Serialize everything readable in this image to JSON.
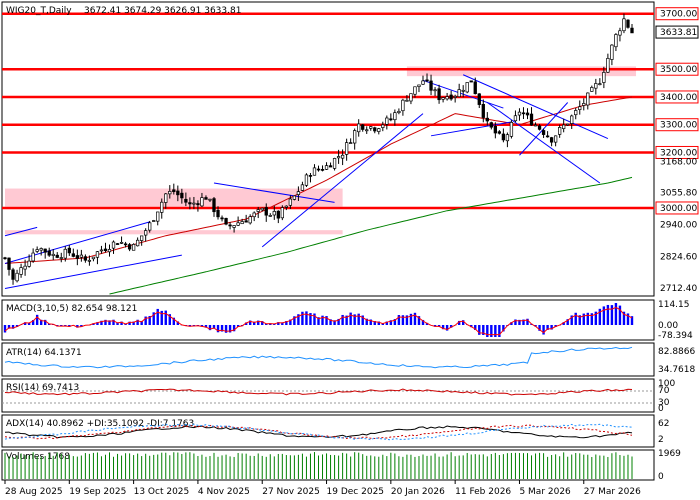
{
  "header": {
    "symbol": "WIG20_T,Daily",
    "ohlc": "3672.41 3674.29 3626.91 3633.81"
  },
  "colors": {
    "up": "#000000",
    "down": "#000000",
    "level": "#ff0000",
    "zone": "#ffc0cb",
    "ma_fast": "#cc0000",
    "ma_slow": "#008000",
    "trend": "#0000ff",
    "macd_hist": "#0000ff",
    "macd_signal": "#ff0000",
    "atr": "#1e90ff",
    "rsi": "#cc0000",
    "adx": "#000000",
    "volume": "#008000"
  },
  "chart_data": {
    "type": "candlestick",
    "ylim": [
      2690,
      3735
    ],
    "yticks": [
      "3700.00",
      "3633.81",
      "3500.00",
      "3400.00",
      "3300.00",
      "3200.00",
      "3168.00",
      "3055.80",
      "3000.00",
      "2940.00",
      "2824.60",
      "2712.40"
    ],
    "highlighted_ticks": [
      "3700.00",
      "3633.81",
      "3500.00",
      "3400.00",
      "3300.00",
      "3200.00",
      "3000.00"
    ],
    "x_labels": [
      "28 Aug 2025",
      "19 Sep 2025",
      "13 Oct 2025",
      "4 Nov 2025",
      "27 Nov 2025",
      "19 Dec 2025",
      "20 Jan 2026",
      "11 Feb 2026",
      "5 Mar 2026",
      "27 Mar 2026"
    ],
    "x_label_bars": [
      0,
      16,
      32,
      48,
      64,
      80,
      96,
      112,
      128,
      144
    ],
    "bar_count": 157,
    "levels": [
      3700,
      3500,
      3400,
      3300,
      3200,
      3000
    ],
    "zones": [
      {
        "bar_start": 100,
        "bar_end": 157,
        "y_low": 3475,
        "y_high": 3510
      },
      {
        "bar_start": 0,
        "bar_end": 84,
        "y_low": 3005,
        "y_high": 3070
      },
      {
        "bar_start": 0,
        "bar_end": 84,
        "y_low": 2905,
        "y_high": 2920
      }
    ],
    "keypoints": [
      [
        0,
        2820
      ],
      [
        2,
        2740
      ],
      [
        5,
        2800
      ],
      [
        8,
        2860
      ],
      [
        12,
        2830
      ],
      [
        16,
        2840
      ],
      [
        20,
        2810
      ],
      [
        24,
        2850
      ],
      [
        28,
        2880
      ],
      [
        32,
        2860
      ],
      [
        36,
        2940
      ],
      [
        40,
        3050
      ],
      [
        42,
        3060
      ],
      [
        46,
        3010
      ],
      [
        50,
        3040
      ],
      [
        55,
        2930
      ],
      [
        60,
        2960
      ],
      [
        64,
        2990
      ],
      [
        68,
        2970
      ],
      [
        72,
        3040
      ],
      [
        76,
        3130
      ],
      [
        80,
        3150
      ],
      [
        84,
        3200
      ],
      [
        88,
        3300
      ],
      [
        92,
        3290
      ],
      [
        96,
        3320
      ],
      [
        100,
        3400
      ],
      [
        104,
        3460
      ],
      [
        108,
        3400
      ],
      [
        112,
        3410
      ],
      [
        116,
        3460
      ],
      [
        120,
        3300
      ],
      [
        124,
        3240
      ],
      [
        128,
        3350
      ],
      [
        132,
        3300
      ],
      [
        136,
        3250
      ],
      [
        140,
        3310
      ],
      [
        144,
        3380
      ],
      [
        148,
        3460
      ],
      [
        152,
        3620
      ],
      [
        154,
        3680
      ],
      [
        156,
        3634
      ]
    ],
    "ma_fast": [
      [
        0,
        2800
      ],
      [
        20,
        2820
      ],
      [
        40,
        2900
      ],
      [
        60,
        2960
      ],
      [
        80,
        3100
      ],
      [
        96,
        3230
      ],
      [
        112,
        3340
      ],
      [
        128,
        3300
      ],
      [
        144,
        3370
      ],
      [
        156,
        3400
      ]
    ],
    "ma_slow": [
      [
        26,
        2690
      ],
      [
        50,
        2770
      ],
      [
        70,
        2840
      ],
      [
        90,
        2920
      ],
      [
        110,
        2990
      ],
      [
        130,
        3040
      ],
      [
        150,
        3090
      ],
      [
        156,
        3110
      ]
    ],
    "trendlines": [
      [
        [
          0,
          2800
        ],
        [
          36,
          2950
        ]
      ],
      [
        [
          0,
          2710
        ],
        [
          44,
          2830
        ]
      ],
      [
        [
          0,
          2900
        ],
        [
          8,
          2930
        ]
      ],
      [
        [
          52,
          3090
        ],
        [
          82,
          3020
        ]
      ],
      [
        [
          64,
          2860
        ],
        [
          104,
          3340
        ]
      ],
      [
        [
          104,
          3460
        ],
        [
          124,
          3360
        ]
      ],
      [
        [
          114,
          3480
        ],
        [
          150,
          3250
        ]
      ],
      [
        [
          106,
          3260
        ],
        [
          126,
          3310
        ]
      ],
      [
        [
          120,
          3380
        ],
        [
          148,
          3090
        ]
      ],
      [
        [
          128,
          3190
        ],
        [
          140,
          3380
        ]
      ]
    ],
    "indicators": {
      "macd": {
        "label": "MACD(3,10,5) 82.654 98.121",
        "ticks": [
          "114.15",
          "0.00",
          "-78.394"
        ]
      },
      "atr": {
        "label": "ATR(14) 64.1371",
        "ticks": [
          "82.8866",
          "34.7618"
        ]
      },
      "rsi": {
        "label": "RSI(14) 69.7413",
        "ticks": [
          "100",
          "70",
          "30",
          "0"
        ]
      },
      "adx": {
        "label": "ADX(14) 40.8962 +DI:35.1092 -DI:7.1763",
        "ticks": [
          "62",
          "2"
        ]
      },
      "volume": {
        "label": "Volumes 1768",
        "ticks": [
          "1969",
          "0"
        ]
      }
    }
  }
}
